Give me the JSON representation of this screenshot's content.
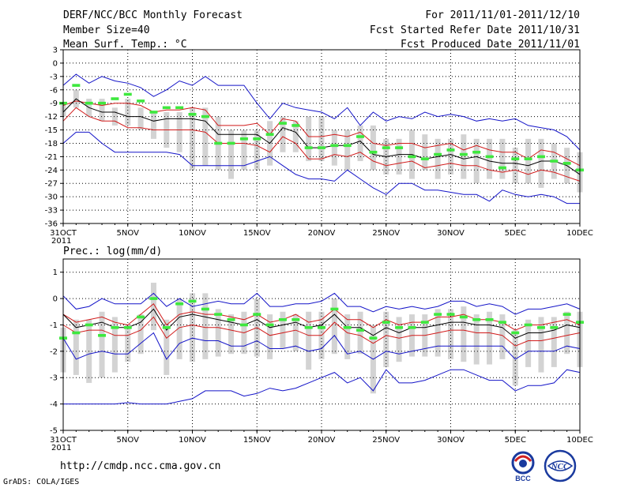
{
  "header": {
    "title": "DERF/NCC/BCC Monthly Forecast",
    "member_size": "Member Size=40",
    "variable_top": "Mean Surf. Temp.: °C",
    "period": "For 2011/11/01-2011/12/10",
    "fcst_started": "Fcst Started Refer Date 2011/10/31",
    "fcst_produced": "Fcst Produced Date 2011/11/01"
  },
  "footer": {
    "url": "http://cmdp.ncc.cma.gov.cn",
    "credit": "GrADS: COLA/IGES",
    "logo_bcc": "BCC",
    "logo_ncc": "NCC"
  },
  "colors": {
    "mean": "#000000",
    "spread": "#d11a1a",
    "envelope": "#1414c8",
    "box": "#d3d3d3",
    "marker": "#3ee83e"
  },
  "chart_data": [
    {
      "type": "line",
      "title": "Mean Surf. Temp.: °C",
      "ylim": [
        -36,
        3
      ],
      "yticks": [
        3,
        0,
        -3,
        -6,
        -9,
        -12,
        -15,
        -18,
        -21,
        -24,
        -27,
        -30,
        -33,
        -36
      ],
      "xlim": [
        0,
        40
      ],
      "xtick_positions": [
        0,
        5,
        10,
        15,
        20,
        25,
        30,
        35,
        40
      ],
      "xtick_labels": [
        "31OCT",
        "5NOV",
        "10NOV",
        "15NOV",
        "20NOV",
        "25NOV",
        "30NOV",
        "5DEC",
        "10DEC"
      ],
      "xyear": "2011",
      "series": [
        {
          "name": "max",
          "values": [
            -5,
            -2.5,
            -4.5,
            -3,
            -4,
            -4.5,
            -5.5,
            -7.5,
            -6,
            -4,
            -5,
            -3,
            -5,
            -5,
            -5,
            -9,
            -12.5,
            -9,
            -10,
            -10.5,
            -11,
            -12.5,
            -10,
            -14,
            -11,
            -13,
            -12,
            -12.5,
            -11,
            -12,
            -11.5,
            -12,
            -13,
            -12.5,
            -13,
            -12.5,
            -14,
            -14.5,
            -15,
            -16.5,
            -19.5
          ]
        },
        {
          "name": "upper",
          "values": [
            -9.5,
            -8.5,
            -9,
            -9.5,
            -9,
            -9,
            -9.5,
            -11,
            -10.5,
            -10.5,
            -10,
            -10.5,
            -14,
            -14,
            -14,
            -13.5,
            -16,
            -12.5,
            -13,
            -16.5,
            -16.5,
            -16,
            -16.5,
            -15.5,
            -18,
            -18.5,
            -18,
            -18,
            -19,
            -18.5,
            -18,
            -19.5,
            -18.5,
            -19.5,
            -20,
            -20,
            -21.5,
            -19.5,
            -20,
            -21.5,
            -23
          ]
        },
        {
          "name": "mean",
          "values": [
            -11,
            -8,
            -10,
            -11,
            -11,
            -12,
            -12,
            -13,
            -12.5,
            -12.5,
            -12.5,
            -13,
            -16,
            -16,
            -16,
            -16,
            -18,
            -14.5,
            -15.5,
            -19,
            -19,
            -18.5,
            -18.5,
            -17.5,
            -20.5,
            -21,
            -20.5,
            -20.5,
            -21.5,
            -21,
            -20.5,
            -21.5,
            -21,
            -22,
            -22.5,
            -22.5,
            -23,
            -22,
            -22,
            -23,
            -25
          ]
        },
        {
          "name": "lower",
          "values": [
            -13,
            -10,
            -12,
            -13,
            -13,
            -14.5,
            -14.5,
            -15,
            -15,
            -15,
            -15,
            -15.5,
            -18,
            -18,
            -18,
            -18.5,
            -20,
            -16.5,
            -18,
            -21.5,
            -21.5,
            -20.5,
            -21,
            -20,
            -22,
            -23,
            -22.5,
            -22,
            -23.5,
            -23,
            -22.5,
            -23,
            -23,
            -24,
            -24.5,
            -24,
            -25,
            -24,
            -24.5,
            -25.5,
            -26.5
          ]
        },
        {
          "name": "min",
          "values": [
            -18,
            -15.5,
            -15.5,
            -18,
            -20,
            -20,
            -20,
            -20,
            -20,
            -20.5,
            -23,
            -23,
            -23,
            -23,
            -23,
            -22,
            -21,
            -23,
            -25,
            -26,
            -26,
            -26.5,
            -24,
            -26,
            -28,
            -29.5,
            -27,
            -27,
            -28.5,
            -28.5,
            -29,
            -29.5,
            -29.5,
            -31,
            -28.5,
            -29.5,
            -30,
            -29.5,
            -30,
            -31.5,
            -31.5
          ]
        }
      ],
      "box_ranges": [
        [
          -12,
          -9
        ],
        [
          -10,
          -6
        ],
        [
          -12,
          -8
        ],
        [
          -13,
          -8
        ],
        [
          -14,
          -10
        ],
        [
          -14,
          -8
        ],
        [
          -15,
          -10
        ],
        [
          -17,
          -11
        ],
        [
          -19,
          -11
        ],
        [
          -20,
          -11
        ],
        [
          -24,
          -10
        ],
        [
          -23,
          -10
        ],
        [
          -24,
          -12
        ],
        [
          -26,
          -15
        ],
        [
          -24,
          -15
        ],
        [
          -24,
          -15
        ],
        [
          -23,
          -13
        ],
        [
          -20,
          -12
        ],
        [
          -20,
          -13
        ],
        [
          -22,
          -12
        ],
        [
          -22,
          -12
        ],
        [
          -23,
          -15
        ],
        [
          -24,
          -15
        ],
        [
          -22,
          -14
        ],
        [
          -24,
          -14
        ],
        [
          -25,
          -17
        ],
        [
          -25,
          -17
        ],
        [
          -26,
          -15
        ],
        [
          -24,
          -16
        ],
        [
          -26,
          -17
        ],
        [
          -25,
          -17
        ],
        [
          -26,
          -16
        ],
        [
          -27,
          -17
        ],
        [
          -26,
          -17
        ],
        [
          -26,
          -17
        ],
        [
          -27,
          -19
        ],
        [
          -27,
          -17
        ],
        [
          -28,
          -17
        ],
        [
          -26,
          -18
        ],
        [
          -27,
          -19
        ],
        [
          -29,
          -20
        ]
      ],
      "markers": [
        -9,
        -5,
        -9,
        -9,
        -8,
        -7,
        -8.5,
        -11,
        -10,
        -10,
        -11.5,
        -12,
        -18,
        -18,
        -17,
        -17,
        -16,
        -13.5,
        -14,
        -19,
        -19,
        -18.5,
        -18.5,
        -16.5,
        -20,
        -19,
        -19,
        -21,
        -21.5,
        -20.5,
        -19.5,
        -20.5,
        -20,
        -21,
        -23.5,
        -21.5,
        -21.5,
        -21,
        -22,
        -22.5,
        -24
      ]
    },
    {
      "type": "line",
      "title": "Prec.: log(mm/d)",
      "ylim": [
        -5,
        1.5
      ],
      "yticks": [
        1,
        0,
        -1,
        -2,
        -3,
        -4,
        -5
      ],
      "xlim": [
        0,
        40
      ],
      "xtick_positions": [
        0,
        5,
        10,
        15,
        20,
        25,
        30,
        35,
        40
      ],
      "xtick_labels": [
        "31OCT",
        "5NOV",
        "10NOV",
        "15NOV",
        "20NOV",
        "25NOV",
        "30NOV",
        "5DEC",
        "10DEC"
      ],
      "xyear": "2011",
      "series": [
        {
          "name": "max",
          "values": [
            0.1,
            -0.4,
            -0.3,
            0,
            -0.2,
            -0.2,
            -0.2,
            0.2,
            -0.3,
            0,
            -0.3,
            -0.2,
            -0.1,
            -0.2,
            -0.2,
            0.2,
            -0.3,
            -0.3,
            -0.2,
            -0.2,
            -0.1,
            0.2,
            -0.3,
            -0.3,
            -0.5,
            -0.3,
            -0.4,
            -0.3,
            -0.4,
            -0.3,
            -0.1,
            -0.1,
            -0.3,
            -0.2,
            -0.3,
            -0.6,
            -0.4,
            -0.4,
            -0.3,
            -0.2,
            -0.4
          ]
        },
        {
          "name": "upper",
          "values": [
            -0.6,
            -0.9,
            -0.8,
            -0.7,
            -0.9,
            -1,
            -0.6,
            -0.2,
            -1,
            -0.6,
            -0.5,
            -0.6,
            -0.6,
            -0.7,
            -0.8,
            -0.6,
            -0.9,
            -0.8,
            -0.6,
            -0.9,
            -0.8,
            -0.4,
            -0.8,
            -0.8,
            -1.1,
            -0.8,
            -1,
            -0.9,
            -0.9,
            -0.7,
            -0.7,
            -0.6,
            -0.8,
            -0.8,
            -0.9,
            -1.2,
            -1,
            -1,
            -0.9,
            -0.8,
            -1
          ]
        },
        {
          "name": "mean",
          "values": [
            -0.6,
            -1.1,
            -1,
            -0.9,
            -1.1,
            -1.1,
            -0.9,
            -0.4,
            -1.2,
            -0.7,
            -0.6,
            -0.7,
            -0.8,
            -0.9,
            -1,
            -0.8,
            -1.1,
            -1,
            -0.9,
            -1.1,
            -1,
            -0.6,
            -1.1,
            -1.1,
            -1.4,
            -1.1,
            -1.3,
            -1.1,
            -1.1,
            -1,
            -0.9,
            -0.9,
            -1,
            -1,
            -1.1,
            -1.5,
            -1.3,
            -1.3,
            -1.2,
            -1,
            -1.1
          ]
        },
        {
          "name": "lower",
          "values": [
            -1,
            -1.3,
            -1.2,
            -1.2,
            -1.4,
            -1.4,
            -1.2,
            -0.7,
            -1.5,
            -1.1,
            -1,
            -1.1,
            -1.1,
            -1.2,
            -1.3,
            -1.1,
            -1.4,
            -1.3,
            -1.2,
            -1.4,
            -1.4,
            -0.9,
            -1.3,
            -1.4,
            -1.7,
            -1.4,
            -1.5,
            -1.4,
            -1.4,
            -1.3,
            -1.2,
            -1.2,
            -1.3,
            -1.3,
            -1.4,
            -1.8,
            -1.6,
            -1.6,
            -1.5,
            -1.4,
            -1.3
          ]
        },
        {
          "name": "min",
          "values": [
            -1.5,
            -2.3,
            -2.1,
            -2,
            -2.1,
            -2.1,
            -1.7,
            -1.3,
            -2.3,
            -1.7,
            -1.5,
            -1.6,
            -1.6,
            -1.8,
            -1.8,
            -1.6,
            -1.9,
            -1.9,
            -1.8,
            -2,
            -1.9,
            -1.4,
            -2.1,
            -2,
            -2.3,
            -2,
            -2.1,
            -2,
            -1.9,
            -1.8,
            -1.8,
            -1.8,
            -1.8,
            -1.8,
            -1.8,
            -2.3,
            -2,
            -2,
            -2,
            -1.8,
            -1.9
          ]
        },
        {
          "name": "abs_min",
          "values": [
            -4,
            -4,
            -4,
            -4,
            -4,
            -3.95,
            -4,
            -4,
            -4,
            -3.9,
            -3.8,
            -3.5,
            -3.5,
            -3.5,
            -3.7,
            -3.6,
            -3.4,
            -3.5,
            -3.4,
            -3.2,
            -3,
            -2.8,
            -3.2,
            -3,
            -3.5,
            -2.7,
            -3.2,
            -3.2,
            -3.1,
            -2.9,
            -2.7,
            -2.7,
            -2.9,
            -3.1,
            -3.1,
            -3.5,
            -3.3,
            -3.3,
            -3.2,
            -2.7,
            -2.8
          ]
        }
      ],
      "box_ranges": [
        [
          -2.8,
          -1.1
        ],
        [
          -2.9,
          -0.8
        ],
        [
          -3.2,
          -0.8
        ],
        [
          -3,
          -0.5
        ],
        [
          -2.8,
          -0.7
        ],
        [
          -2.4,
          -1
        ],
        [
          -2.1,
          -0.6
        ],
        [
          -1.2,
          0.6
        ],
        [
          -2.9,
          -0.8
        ],
        [
          -2.3,
          0
        ],
        [
          -2.4,
          0.2
        ],
        [
          -2.3,
          0.2
        ],
        [
          -2.2,
          -0.4
        ],
        [
          -2.1,
          -0.6
        ],
        [
          -2.1,
          -0.5
        ],
        [
          -2.2,
          0
        ],
        [
          -2.3,
          -0.6
        ],
        [
          -1.9,
          -0.5
        ],
        [
          -2,
          -0.6
        ],
        [
          -2.7,
          -0.5
        ],
        [
          -2.3,
          -0.5
        ],
        [
          -2.1,
          0
        ],
        [
          -2.3,
          -0.6
        ],
        [
          -2.1,
          -0.5
        ],
        [
          -3.6,
          -1
        ],
        [
          -2.6,
          -0.5
        ],
        [
          -2.4,
          -0.7
        ],
        [
          -2.2,
          -0.6
        ],
        [
          -2.2,
          -0.6
        ],
        [
          -2.2,
          -0.4
        ],
        [
          -2.3,
          -0.4
        ],
        [
          -2.4,
          -0.3
        ],
        [
          -2.5,
          -0.6
        ],
        [
          -2.5,
          -0.5
        ],
        [
          -2.3,
          -0.6
        ],
        [
          -3.3,
          -1.2
        ],
        [
          -2.6,
          -0.8
        ],
        [
          -2.8,
          -0.7
        ],
        [
          -2.6,
          -0.7
        ],
        [
          -2.1,
          -0.5
        ],
        [
          -2.6,
          -0.5
        ]
      ],
      "markers": [
        -1.5,
        -1.3,
        -1,
        -1.4,
        -1.1,
        -1.1,
        -0.7,
        0,
        -1.1,
        -0.2,
        -0.1,
        -0.4,
        -0.6,
        -0.8,
        -1,
        -0.6,
        -1,
        -0.8,
        -0.8,
        -1.1,
        -1.1,
        -0.4,
        -1.1,
        -1.2,
        -1.5,
        -0.9,
        -1.1,
        -1.1,
        -0.9,
        -0.6,
        -0.6,
        -0.7,
        -0.8,
        -0.8,
        -0.9,
        -1.3,
        -1,
        -1.1,
        -1.1,
        -0.6,
        -0.9
      ]
    }
  ]
}
